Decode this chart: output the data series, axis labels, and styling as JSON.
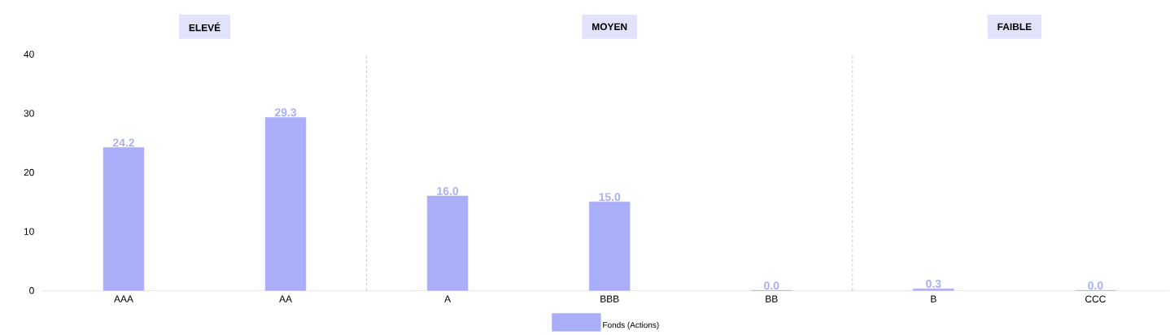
{
  "chart_data": {
    "type": "bar",
    "categories": [
      "AAA",
      "AA",
      "A",
      "BBB",
      "BB",
      "B",
      "CCC"
    ],
    "series": [
      {
        "name": "Fonds (Actions)",
        "color": "#aaaef8",
        "values": [
          24.2,
          29.3,
          16.0,
          15.0,
          0.0,
          0.3,
          0.0
        ],
        "value_labels": [
          "24.2",
          "29.3",
          "16.0",
          "15.0",
          "0.0",
          "0.3",
          "0.0"
        ]
      }
    ],
    "ylim": [
      0,
      40
    ],
    "yticks": [
      0,
      10,
      20,
      30,
      40
    ],
    "annotations": [
      "ELEVÉ",
      "MOYEN",
      "FAIBLE"
    ],
    "legend": "bottom",
    "grid": false
  }
}
